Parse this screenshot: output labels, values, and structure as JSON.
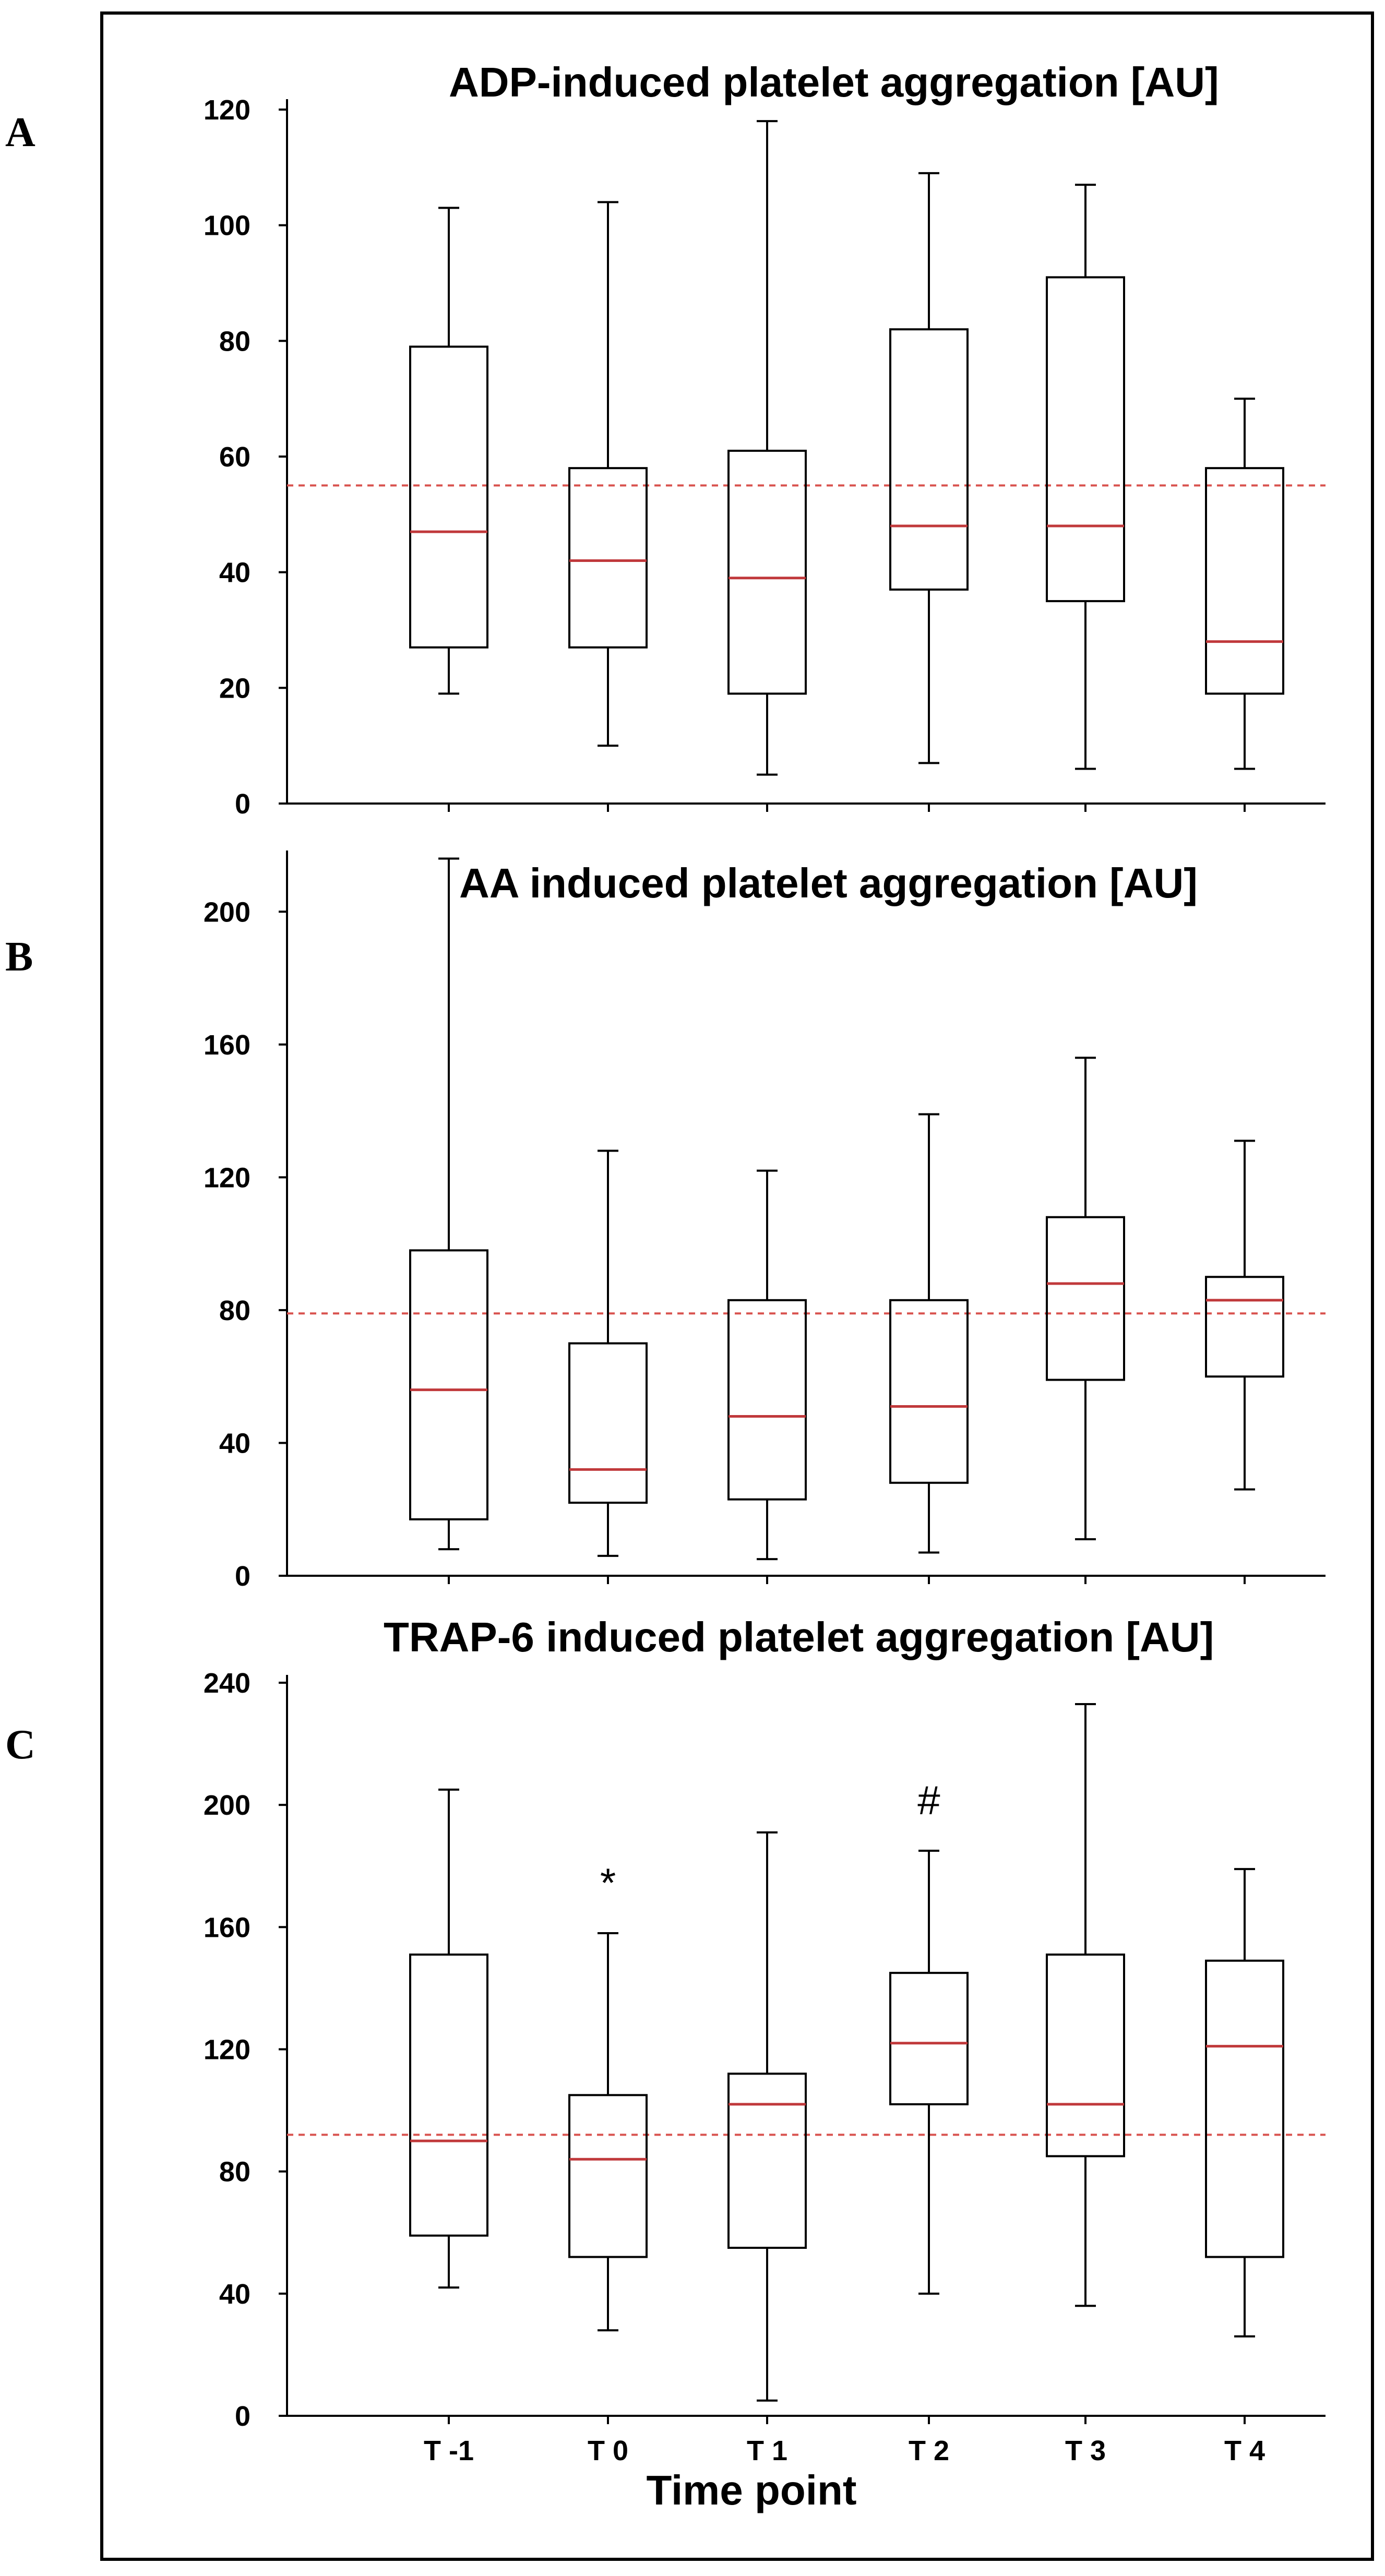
{
  "colors": {
    "median": "#c0393b",
    "reference_line": "#d9534f",
    "frame": "#000000"
  },
  "shared": {
    "xlabel": "Time point",
    "categories": [
      "T -1",
      "T 0",
      "T 1",
      "T 2",
      "T 3",
      "T 4"
    ]
  },
  "chart_data": [
    {
      "type": "box",
      "panel": "A",
      "title": "ADP-induced platelet aggregation [AU]",
      "ylim": [
        0,
        120
      ],
      "yticks": [
        0,
        20,
        40,
        60,
        80,
        100,
        120
      ],
      "reference_value": 55,
      "categories": [
        "T -1",
        "T 0",
        "T 1",
        "T 2",
        "T 3",
        "T 4"
      ],
      "boxes": [
        {
          "label": "T -1",
          "min": 19,
          "q1": 27,
          "median": 47,
          "q3": 79,
          "max": 103
        },
        {
          "label": "T 0",
          "min": 10,
          "q1": 27,
          "median": 42,
          "q3": 58,
          "max": 104
        },
        {
          "label": "T 1",
          "min": 5,
          "q1": 19,
          "median": 39,
          "q3": 61,
          "max": 118
        },
        {
          "label": "T 2",
          "min": 7,
          "q1": 37,
          "median": 48,
          "q3": 82,
          "max": 109
        },
        {
          "label": "T 3",
          "min": 6,
          "q1": 35,
          "median": 48,
          "q3": 91,
          "max": 107
        },
        {
          "label": "T 4",
          "min": 6,
          "q1": 19,
          "median": 28,
          "q3": 58,
          "max": 70
        }
      ],
      "annotations": []
    },
    {
      "type": "box",
      "panel": "B",
      "title": "AA induced platelet aggregation [AU]",
      "ylim": [
        0,
        220
      ],
      "yticks": [
        0,
        40,
        80,
        120,
        160,
        200
      ],
      "reference_value": 79,
      "categories": [
        "T -1",
        "T 0",
        "T 1",
        "T 2",
        "T 3",
        "T 4"
      ],
      "boxes": [
        {
          "label": "T -1",
          "min": 8,
          "q1": 17,
          "median": 56,
          "q3": 98,
          "max": 216
        },
        {
          "label": "T 0",
          "min": 6,
          "q1": 22,
          "median": 32,
          "q3": 70,
          "max": 128
        },
        {
          "label": "T 1",
          "min": 5,
          "q1": 23,
          "median": 48,
          "q3": 83,
          "max": 122
        },
        {
          "label": "T 2",
          "min": 7,
          "q1": 28,
          "median": 51,
          "q3": 83,
          "max": 139
        },
        {
          "label": "T 3",
          "min": 11,
          "q1": 59,
          "median": 88,
          "q3": 108,
          "max": 156
        },
        {
          "label": "T 4",
          "min": 26,
          "q1": 60,
          "median": 83,
          "q3": 90,
          "max": 131
        }
      ],
      "annotations": []
    },
    {
      "type": "box",
      "panel": "C",
      "title": "TRAP-6 induced platelet aggregation [AU]",
      "ylim": [
        0,
        240
      ],
      "yticks": [
        0,
        40,
        80,
        120,
        160,
        200,
        240
      ],
      "reference_value": 92,
      "categories": [
        "T -1",
        "T 0",
        "T 1",
        "T 2",
        "T 3",
        "T 4"
      ],
      "boxes": [
        {
          "label": "T -1",
          "min": 42,
          "q1": 59,
          "median": 90,
          "q3": 151,
          "max": 205
        },
        {
          "label": "T 0",
          "min": 28,
          "q1": 52,
          "median": 84,
          "q3": 105,
          "max": 158
        },
        {
          "label": "T 1",
          "min": 5,
          "q1": 55,
          "median": 102,
          "q3": 112,
          "max": 191
        },
        {
          "label": "T 2",
          "min": 40,
          "q1": 102,
          "median": 122,
          "q3": 145,
          "max": 185
        },
        {
          "label": "T 3",
          "min": 36,
          "q1": 85,
          "median": 102,
          "q3": 151,
          "max": 233
        },
        {
          "label": "T 4",
          "min": 26,
          "q1": 52,
          "median": 121,
          "q3": 149,
          "max": 179
        }
      ],
      "annotations": [
        {
          "label": "T 0",
          "text": "*"
        },
        {
          "label": "T 2",
          "text": "#"
        }
      ]
    }
  ]
}
